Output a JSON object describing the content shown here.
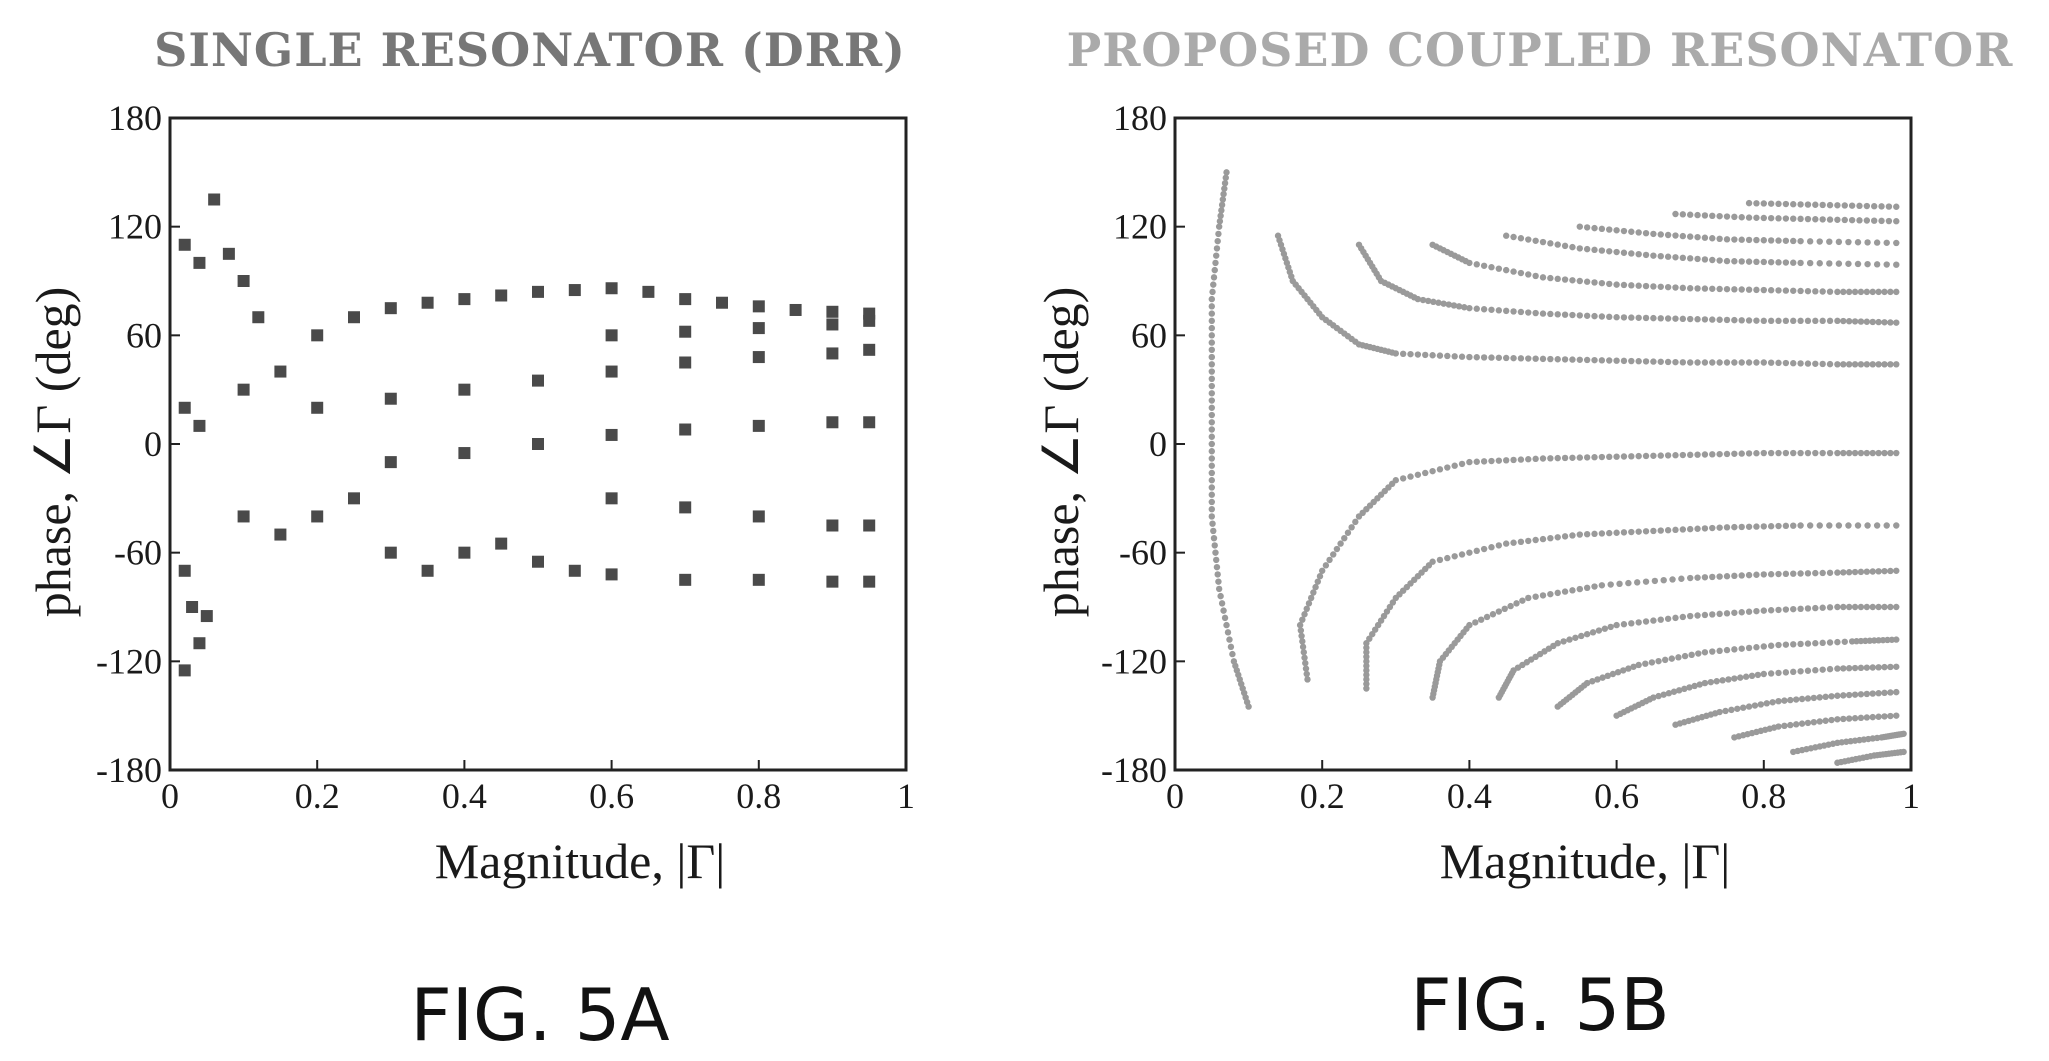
{
  "figure": {
    "caption_a": "FIG. 5A",
    "caption_b": "FIG. 5B"
  },
  "chart_data": [
    {
      "type": "scatter",
      "title": "Single Resonator (DRR)",
      "title_display": "SINGLE RESONATOR (DRR)",
      "xlabel": "Magnitude, |Γ|",
      "ylabel": "phase, ∠Γ (deg)",
      "xlim": [
        0,
        1
      ],
      "ylim": [
        -180,
        180
      ],
      "xticks": [
        "0",
        "0.2",
        "0.4",
        "0.6",
        "0.8",
        "1"
      ],
      "xtick_values": [
        0,
        0.2,
        0.4,
        0.6,
        0.8,
        1
      ],
      "yticks": [
        "180",
        "120",
        "60",
        "0",
        "-60",
        "-120",
        "-180"
      ],
      "ytick_values": [
        180,
        120,
        60,
        0,
        -60,
        -120,
        -180
      ],
      "grid": false,
      "marker_color": "#4a4a4a",
      "title_color": "#777777",
      "coverage": {
        "phase_range_at_full_magnitude": [
          -75,
          75
        ],
        "max_phase": 140,
        "min_phase": -130
      },
      "series": [
        {
          "points": [
            [
              0.02,
              110
            ],
            [
              0.04,
              100
            ],
            [
              0.06,
              135
            ],
            [
              0.08,
              105
            ],
            [
              0.1,
              90
            ],
            [
              0.12,
              70
            ],
            [
              0.02,
              20
            ],
            [
              0.04,
              10
            ],
            [
              0.1,
              30
            ],
            [
              0.15,
              40
            ],
            [
              0.2,
              60
            ],
            [
              0.25,
              70
            ],
            [
              0.3,
              75
            ],
            [
              0.35,
              78
            ],
            [
              0.4,
              80
            ],
            [
              0.45,
              82
            ],
            [
              0.5,
              84
            ],
            [
              0.55,
              85
            ],
            [
              0.6,
              86
            ],
            [
              0.65,
              84
            ],
            [
              0.7,
              80
            ],
            [
              0.75,
              78
            ],
            [
              0.8,
              76
            ],
            [
              0.85,
              74
            ],
            [
              0.9,
              73
            ],
            [
              0.95,
              72
            ],
            [
              0.2,
              20
            ],
            [
              0.3,
              25
            ],
            [
              0.4,
              30
            ],
            [
              0.5,
              35
            ],
            [
              0.6,
              40
            ],
            [
              0.7,
              45
            ],
            [
              0.8,
              48
            ],
            [
              0.9,
              50
            ],
            [
              0.95,
              52
            ],
            [
              0.3,
              -10
            ],
            [
              0.4,
              -5
            ],
            [
              0.5,
              0
            ],
            [
              0.6,
              5
            ],
            [
              0.7,
              8
            ],
            [
              0.8,
              10
            ],
            [
              0.9,
              12
            ],
            [
              0.95,
              12
            ],
            [
              0.1,
              -40
            ],
            [
              0.15,
              -50
            ],
            [
              0.2,
              -40
            ],
            [
              0.25,
              -30
            ],
            [
              0.3,
              -60
            ],
            [
              0.35,
              -70
            ],
            [
              0.4,
              -60
            ],
            [
              0.45,
              -55
            ],
            [
              0.5,
              -65
            ],
            [
              0.55,
              -70
            ],
            [
              0.6,
              -72
            ],
            [
              0.7,
              -75
            ],
            [
              0.8,
              -75
            ],
            [
              0.9,
              -76
            ],
            [
              0.95,
              -76
            ],
            [
              0.02,
              -70
            ],
            [
              0.03,
              -90
            ],
            [
              0.04,
              -110
            ],
            [
              0.05,
              -95
            ],
            [
              0.02,
              -125
            ],
            [
              0.6,
              -30
            ],
            [
              0.7,
              -35
            ],
            [
              0.8,
              -40
            ],
            [
              0.9,
              -45
            ],
            [
              0.95,
              -45
            ],
            [
              0.6,
              60
            ],
            [
              0.7,
              62
            ],
            [
              0.8,
              64
            ],
            [
              0.9,
              66
            ],
            [
              0.95,
              68
            ]
          ]
        }
      ]
    },
    {
      "type": "scatter",
      "title": "Proposed Coupled Resonator",
      "title_display": "PROPOSED COUPLED RESONATOR",
      "xlabel": "Magnitude, |Γ|",
      "ylabel": "phase, ∠Γ (deg)",
      "xlim": [
        0,
        1
      ],
      "ylim": [
        -180,
        180
      ],
      "xticks": [
        "0",
        "0.2",
        "0.4",
        "0.6",
        "0.8",
        "1"
      ],
      "xtick_values": [
        0,
        0.2,
        0.4,
        0.6,
        0.8,
        1
      ],
      "yticks": [
        "180",
        "120",
        "60",
        "0",
        "-60",
        "-120",
        "-180"
      ],
      "ytick_values": [
        180,
        120,
        60,
        0,
        -60,
        -120,
        -180
      ],
      "grid": false,
      "marker_color": "#9a9a9a",
      "title_color": "#aaaaaa",
      "coverage": {
        "phase_range_at_full_magnitude": [
          -180,
          135
        ],
        "max_phase": 155,
        "min_phase": -180
      },
      "series": [
        {
          "curves": [
            {
              "points": [
                [
                  0.07,
                  150
                ],
                [
                  0.06,
                  120
                ],
                [
                  0.05,
                  80
                ],
                [
                  0.05,
                  40
                ],
                [
                  0.05,
                  0
                ],
                [
                  0.05,
                  -40
                ],
                [
                  0.06,
                  -80
                ],
                [
                  0.08,
                  -120
                ],
                [
                  0.1,
                  -145
                ]
              ]
            },
            {
              "points": [
                [
                  0.14,
                  115
                ],
                [
                  0.16,
                  90
                ],
                [
                  0.2,
                  70
                ],
                [
                  0.25,
                  55
                ],
                [
                  0.3,
                  50
                ],
                [
                  0.4,
                  48
                ],
                [
                  0.5,
                  47
                ],
                [
                  0.6,
                  46
                ],
                [
                  0.7,
                  45
                ],
                [
                  0.8,
                  45
                ],
                [
                  0.9,
                  44
                ],
                [
                  0.98,
                  44
                ]
              ]
            },
            {
              "points": [
                [
                  0.25,
                  110
                ],
                [
                  0.28,
                  90
                ],
                [
                  0.33,
                  80
                ],
                [
                  0.4,
                  75
                ],
                [
                  0.5,
                  72
                ],
                [
                  0.6,
                  70
                ],
                [
                  0.7,
                  69
                ],
                [
                  0.8,
                  68
                ],
                [
                  0.9,
                  68
                ],
                [
                  0.98,
                  67
                ]
              ]
            },
            {
              "points": [
                [
                  0.35,
                  110
                ],
                [
                  0.4,
                  100
                ],
                [
                  0.5,
                  92
                ],
                [
                  0.6,
                  88
                ],
                [
                  0.7,
                  86
                ],
                [
                  0.8,
                  85
                ],
                [
                  0.9,
                  84
                ],
                [
                  0.98,
                  84
                ]
              ]
            },
            {
              "points": [
                [
                  0.45,
                  115
                ],
                [
                  0.55,
                  108
                ],
                [
                  0.65,
                  104
                ],
                [
                  0.75,
                  101
                ],
                [
                  0.85,
                  100
                ],
                [
                  0.98,
                  99
                ]
              ]
            },
            {
              "points": [
                [
                  0.55,
                  120
                ],
                [
                  0.65,
                  116
                ],
                [
                  0.75,
                  113
                ],
                [
                  0.85,
                  112
                ],
                [
                  0.98,
                  111
                ]
              ]
            },
            {
              "points": [
                [
                  0.68,
                  127
                ],
                [
                  0.78,
                  125
                ],
                [
                  0.88,
                  124
                ],
                [
                  0.98,
                  123
                ]
              ]
            },
            {
              "points": [
                [
                  0.78,
                  133
                ],
                [
                  0.88,
                  132
                ],
                [
                  0.98,
                  131
                ]
              ]
            },
            {
              "points": [
                [
                  0.18,
                  -130
                ],
                [
                  0.17,
                  -100
                ],
                [
                  0.2,
                  -70
                ],
                [
                  0.25,
                  -40
                ],
                [
                  0.3,
                  -20
                ],
                [
                  0.4,
                  -10
                ],
                [
                  0.5,
                  -8
                ],
                [
                  0.6,
                  -7
                ],
                [
                  0.7,
                  -6
                ],
                [
                  0.8,
                  -5
                ],
                [
                  0.9,
                  -5
                ],
                [
                  0.98,
                  -5
                ]
              ]
            },
            {
              "points": [
                [
                  0.26,
                  -135
                ],
                [
                  0.26,
                  -110
                ],
                [
                  0.3,
                  -85
                ],
                [
                  0.35,
                  -65
                ],
                [
                  0.45,
                  -55
                ],
                [
                  0.55,
                  -50
                ],
                [
                  0.65,
                  -48
                ],
                [
                  0.75,
                  -46
                ],
                [
                  0.85,
                  -45
                ],
                [
                  0.98,
                  -45
                ]
              ]
            },
            {
              "points": [
                [
                  0.35,
                  -140
                ],
                [
                  0.36,
                  -120
                ],
                [
                  0.4,
                  -100
                ],
                [
                  0.48,
                  -85
                ],
                [
                  0.58,
                  -78
                ],
                [
                  0.7,
                  -74
                ],
                [
                  0.8,
                  -72
                ],
                [
                  0.9,
                  -71
                ],
                [
                  0.98,
                  -70
                ]
              ]
            },
            {
              "points": [
                [
                  0.44,
                  -140
                ],
                [
                  0.46,
                  -125
                ],
                [
                  0.52,
                  -110
                ],
                [
                  0.6,
                  -100
                ],
                [
                  0.7,
                  -95
                ],
                [
                  0.8,
                  -92
                ],
                [
                  0.9,
                  -90
                ],
                [
                  0.98,
                  -90
                ]
              ]
            },
            {
              "points": [
                [
                  0.52,
                  -145
                ],
                [
                  0.56,
                  -132
                ],
                [
                  0.63,
                  -122
                ],
                [
                  0.72,
                  -115
                ],
                [
                  0.82,
                  -111
                ],
                [
                  0.92,
                  -109
                ],
                [
                  0.98,
                  -108
                ]
              ]
            },
            {
              "points": [
                [
                  0.6,
                  -150
                ],
                [
                  0.65,
                  -140
                ],
                [
                  0.72,
                  -132
                ],
                [
                  0.8,
                  -127
                ],
                [
                  0.9,
                  -124
                ],
                [
                  0.98,
                  -123
                ]
              ]
            },
            {
              "points": [
                [
                  0.68,
                  -155
                ],
                [
                  0.74,
                  -148
                ],
                [
                  0.82,
                  -142
                ],
                [
                  0.9,
                  -139
                ],
                [
                  0.98,
                  -137
                ]
              ]
            },
            {
              "points": [
                [
                  0.76,
                  -162
                ],
                [
                  0.82,
                  -156
                ],
                [
                  0.9,
                  -152
                ],
                [
                  0.98,
                  -150
                ]
              ]
            },
            {
              "points": [
                [
                  0.84,
                  -170
                ],
                [
                  0.9,
                  -165
                ],
                [
                  0.96,
                  -162
                ],
                [
                  0.99,
                  -160
                ]
              ]
            },
            {
              "points": [
                [
                  0.9,
                  -176
                ],
                [
                  0.95,
                  -172
                ],
                [
                  0.99,
                  -170
                ]
              ]
            }
          ]
        }
      ]
    }
  ]
}
